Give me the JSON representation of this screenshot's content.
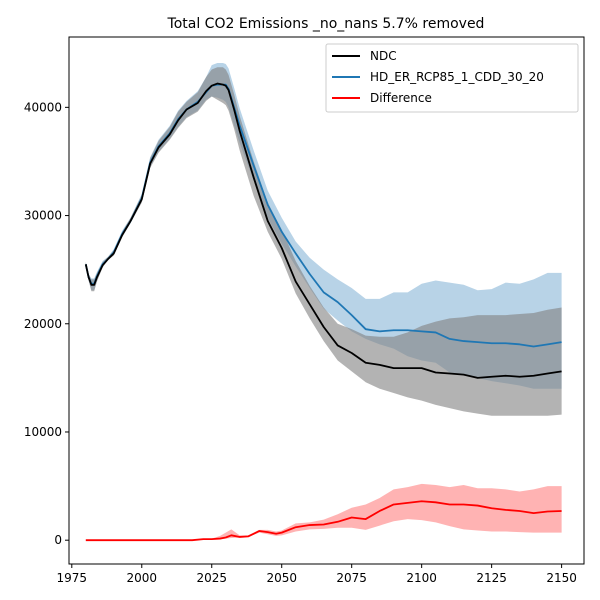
{
  "chart_data": {
    "type": "line",
    "title": "Total CO2 Emissions _no_nans 5.7% removed",
    "xlabel": "",
    "ylabel": "",
    "xlim": [
      1974,
      2158
    ],
    "ylim": [
      -2200,
      46500
    ],
    "xticks": [
      1975,
      2000,
      2025,
      2050,
      2075,
      2100,
      2125,
      2150
    ],
    "yticks": [
      0,
      10000,
      20000,
      30000,
      40000
    ],
    "legend": {
      "placement": "top-right"
    },
    "grid": false,
    "series": [
      {
        "name": "NDC",
        "color": "#000000",
        "band_color": "#808080",
        "x": [
          1980,
          1981,
          1982,
          1983,
          1984,
          1986,
          1988,
          1990,
          1993,
          1996,
          2000,
          2003,
          2006,
          2010,
          2013,
          2016,
          2020,
          2023,
          2025,
          2027,
          2029,
          2030,
          2031,
          2033,
          2035,
          2040,
          2045,
          2050,
          2055,
          2060,
          2065,
          2070,
          2075,
          2080,
          2085,
          2090,
          2095,
          2100,
          2105,
          2110,
          2115,
          2120,
          2125,
          2130,
          2135,
          2140,
          2145,
          2150
        ],
        "y": [
          25500,
          24300,
          23600,
          23600,
          24300,
          25400,
          26000,
          26500,
          28200,
          29500,
          31500,
          34800,
          36300,
          37500,
          38800,
          39800,
          40400,
          41500,
          42000,
          42200,
          42100,
          42000,
          41600,
          39800,
          37800,
          33500,
          29500,
          27000,
          23900,
          21800,
          19700,
          18000,
          17300,
          16400,
          16200,
          15900,
          15900,
          15900,
          15500,
          15400,
          15300,
          15000,
          15100,
          15200,
          15100,
          15200,
          15400,
          15600
        ],
        "y_low": [
          25300,
          24000,
          23000,
          23000,
          23900,
          25200,
          25900,
          26300,
          28000,
          29300,
          31200,
          34400,
          35800,
          37000,
          38100,
          39000,
          39600,
          40600,
          41000,
          40700,
          40400,
          40200,
          39700,
          38000,
          36000,
          31800,
          28500,
          26000,
          22800,
          20500,
          18400,
          16600,
          15600,
          14600,
          14000,
          13600,
          13200,
          12900,
          12500,
          12200,
          11900,
          11700,
          11500,
          11500,
          11500,
          11500,
          11500,
          11600
        ],
        "y_high": [
          25700,
          24600,
          24100,
          24100,
          24700,
          25700,
          26200,
          26800,
          28500,
          29800,
          31900,
          35300,
          36900,
          38200,
          39600,
          40500,
          41400,
          42800,
          43500,
          43700,
          43700,
          43500,
          43000,
          41200,
          39200,
          35000,
          31200,
          28700,
          25800,
          23500,
          21500,
          20000,
          19500,
          18900,
          18800,
          18800,
          19200,
          19800,
          20200,
          20500,
          20600,
          20800,
          20800,
          20800,
          20900,
          21000,
          21300,
          21500
        ]
      },
      {
        "name": "HD_ER_RCP85_1_CDD_30_20",
        "color": "#1f77b4",
        "band_color": "#b8d3e7",
        "x": [
          1980,
          1981,
          1982,
          1983,
          1984,
          1986,
          1988,
          1990,
          1993,
          1996,
          2000,
          2003,
          2006,
          2010,
          2013,
          2016,
          2020,
          2023,
          2025,
          2027,
          2029,
          2030,
          2031,
          2033,
          2035,
          2040,
          2045,
          2050,
          2055,
          2060,
          2065,
          2070,
          2075,
          2080,
          2085,
          2090,
          2095,
          2100,
          2105,
          2110,
          2115,
          2120,
          2125,
          2130,
          2135,
          2140,
          2145,
          2150
        ],
        "y": [
          25500,
          24300,
          23700,
          23700,
          24400,
          25500,
          26000,
          26600,
          28300,
          29500,
          31600,
          34900,
          36400,
          37600,
          38900,
          39800,
          40500,
          41400,
          42000,
          42100,
          42100,
          42100,
          41700,
          40000,
          38300,
          34600,
          31000,
          28500,
          26500,
          24600,
          22900,
          22000,
          20800,
          19500,
          19300,
          19400,
          19400,
          19300,
          19200,
          18600,
          18400,
          18300,
          18200,
          18200,
          18100,
          17900,
          18100,
          18300
        ],
        "y_low": [
          25300,
          24000,
          23100,
          23100,
          24000,
          25300,
          25900,
          26400,
          28100,
          29300,
          31300,
          34500,
          35900,
          37100,
          38200,
          39100,
          39700,
          40700,
          41000,
          40900,
          40700,
          40500,
          40000,
          38300,
          36700,
          33200,
          29800,
          27400,
          25300,
          23300,
          21400,
          20300,
          19300,
          18600,
          18100,
          17700,
          17000,
          16600,
          16400,
          15500,
          15300,
          15000,
          14700,
          14500,
          14300,
          14000,
          14000,
          14000
        ],
        "y_high": [
          25700,
          24600,
          24200,
          24200,
          24800,
          25800,
          26200,
          26900,
          28600,
          29800,
          32000,
          35400,
          37000,
          38300,
          39700,
          40600,
          41500,
          42800,
          43900,
          44100,
          44100,
          44000,
          43600,
          41800,
          39900,
          36000,
          32300,
          29800,
          27600,
          26100,
          25000,
          24100,
          23300,
          22300,
          22300,
          22900,
          22900,
          23700,
          24000,
          23800,
          23600,
          23100,
          23200,
          23800,
          23700,
          24100,
          24700,
          24700
        ]
      },
      {
        "name": "Difference",
        "color": "#ff0000",
        "band_color": "#ffb3b3",
        "x": [
          1980,
          1985,
          1990,
          2000,
          2010,
          2018,
          2022,
          2025,
          2028,
          2030,
          2032,
          2035,
          2038,
          2042,
          2045,
          2048,
          2050,
          2055,
          2060,
          2065,
          2070,
          2075,
          2080,
          2085,
          2090,
          2095,
          2100,
          2105,
          2110,
          2115,
          2120,
          2125,
          2130,
          2135,
          2140,
          2145,
          2150
        ],
        "y": [
          0,
          0,
          0,
          0,
          0,
          0,
          100,
          100,
          150,
          250,
          450,
          300,
          350,
          850,
          750,
          600,
          700,
          1200,
          1400,
          1450,
          1700,
          2100,
          1950,
          2700,
          3300,
          3450,
          3600,
          3500,
          3300,
          3300,
          3200,
          2950,
          2800,
          2700,
          2500,
          2650,
          2700
        ],
        "y_low": [
          0,
          0,
          0,
          0,
          0,
          0,
          50,
          50,
          100,
          150,
          200,
          250,
          300,
          700,
          550,
          400,
          450,
          800,
          1000,
          1050,
          1150,
          1150,
          950,
          1350,
          1750,
          1950,
          1850,
          1650,
          1300,
          1000,
          900,
          800,
          800,
          750,
          700,
          700,
          700
        ],
        "y_high": [
          0,
          0,
          0,
          0,
          0,
          0,
          150,
          150,
          400,
          700,
          1000,
          450,
          450,
          950,
          950,
          800,
          900,
          1550,
          1650,
          1900,
          2400,
          3000,
          3300,
          3900,
          4700,
          4900,
          5200,
          5100,
          4900,
          5100,
          4800,
          4800,
          4700,
          4500,
          4700,
          5000,
          5000
        ]
      }
    ]
  }
}
